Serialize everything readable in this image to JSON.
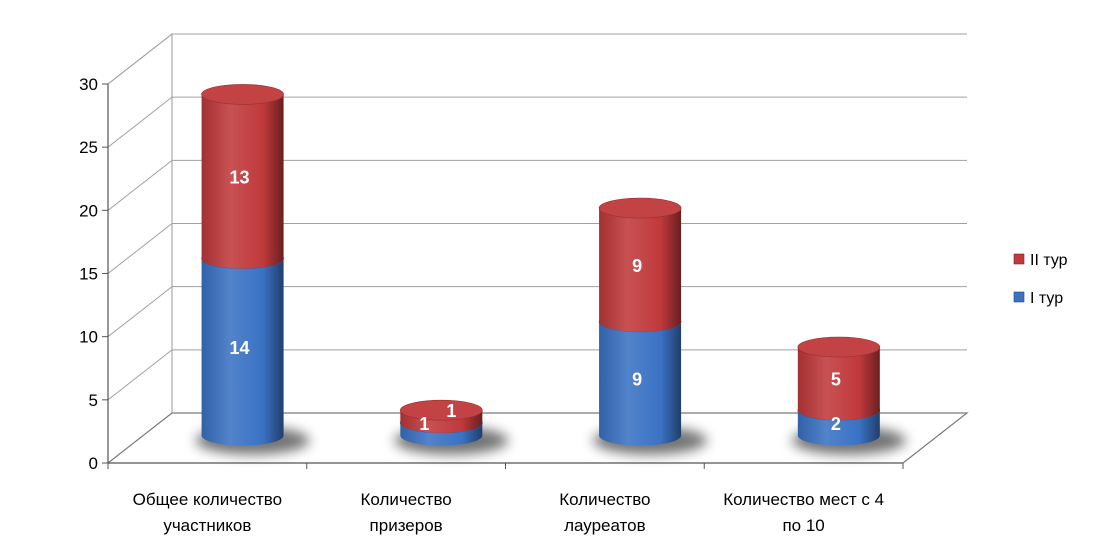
{
  "chart_data": {
    "type": "bar",
    "stacked": true,
    "style": "3d-cylinder",
    "categories": [
      [
        "Общее количество",
        "участников"
      ],
      [
        "Количество",
        "призеров"
      ],
      [
        "Количество",
        "лауреатов"
      ],
      [
        "Количество мест с 4",
        "по 10"
      ]
    ],
    "series": [
      {
        "name": "I тур",
        "values": [
          14,
          1,
          9,
          2
        ],
        "color": "#3a72c4"
      },
      {
        "name": "II тур",
        "values": [
          13,
          1,
          9,
          5
        ],
        "color": "#c0393b"
      }
    ],
    "ylim": [
      0,
      30
    ],
    "yticks": [
      0,
      5,
      10,
      15,
      20,
      25,
      30
    ],
    "grid": true,
    "legend_position": "right",
    "legend_order": [
      "II тур",
      "I тур"
    ]
  }
}
